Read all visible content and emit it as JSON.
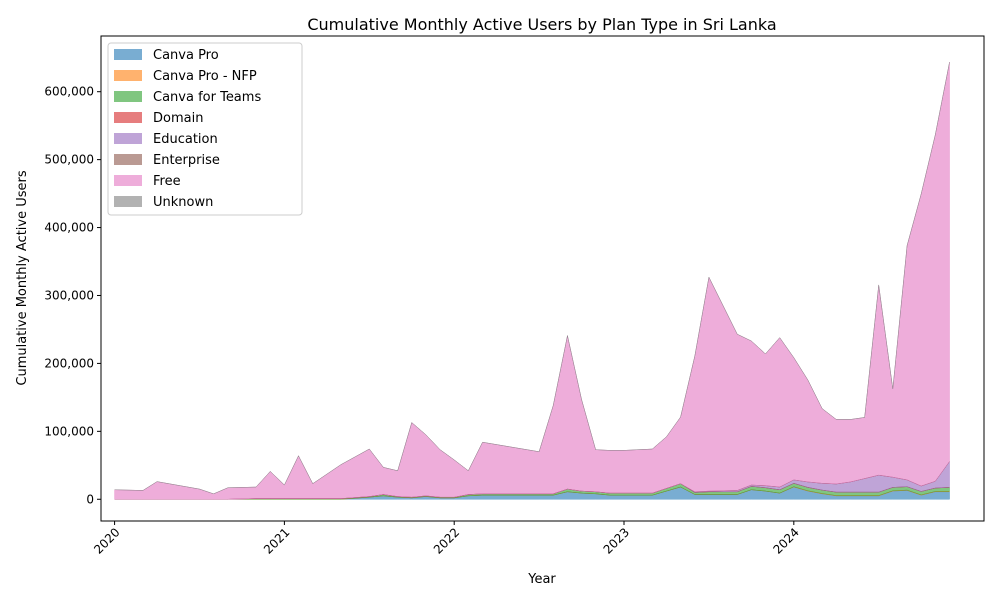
{
  "chart_data": {
    "type": "area",
    "stacked": true,
    "title": "Cumulative Monthly Active Users by Plan Type in Sri Lanka",
    "xlabel": "Year",
    "ylabel": "Cumulative Monthly Active Users",
    "xlim": [
      2019.92,
      2025.12
    ],
    "ylim": [
      -32000,
      682000
    ],
    "x_ticks": [
      2020,
      2021,
      2022,
      2023,
      2024
    ],
    "x_tick_labels": [
      "2020",
      "2021",
      "2022",
      "2023",
      "2024"
    ],
    "y_ticks": [
      0,
      100000,
      200000,
      300000,
      400000,
      500000,
      600000
    ],
    "y_tick_labels": [
      "0",
      "100,000",
      "200,000",
      "300,000",
      "400,000",
      "500,000",
      "600,000"
    ],
    "grid": false,
    "legend_position": "upper-left",
    "x": [
      2020.0,
      2020.167,
      2020.25,
      2020.5,
      2020.583,
      2020.667,
      2020.833,
      2020.917,
      2021.0,
      2021.083,
      2021.167,
      2021.333,
      2021.5,
      2021.583,
      2021.667,
      2021.75,
      2021.833,
      2021.917,
      2022.0,
      2022.083,
      2022.167,
      2022.5,
      2022.583,
      2022.667,
      2022.75,
      2022.833,
      2022.917,
      2023.0,
      2023.167,
      2023.25,
      2023.333,
      2023.417,
      2023.5,
      2023.667,
      2023.75,
      2023.833,
      2023.917,
      2024.0,
      2024.083,
      2024.167,
      2024.25,
      2024.333,
      2024.417,
      2024.5,
      2024.583,
      2024.667,
      2024.75,
      2024.833,
      2024.917
    ],
    "series": [
      {
        "name": "Canva Pro",
        "color": "#1f77b4",
        "values": [
          0,
          0,
          0,
          0,
          0,
          0,
          0,
          0,
          0,
          0,
          0,
          0,
          3000,
          5000,
          3000,
          2000,
          4000,
          2000,
          2000,
          5000,
          6000,
          6000,
          6000,
          11000,
          9000,
          8000,
          6000,
          6000,
          6000,
          12000,
          18000,
          7000,
          7000,
          7000,
          14000,
          12000,
          9000,
          18000,
          12000,
          8000,
          5000,
          5000,
          5000,
          5000,
          12000,
          13000,
          6000,
          11000,
          11000
        ]
      },
      {
        "name": "Canva Pro - NFP",
        "color": "#ff7f0e",
        "values": [
          0,
          0,
          0,
          0,
          0,
          0,
          0,
          0,
          0,
          0,
          0,
          0,
          0,
          0,
          0,
          0,
          0,
          0,
          0,
          0,
          0,
          0,
          0,
          0,
          0,
          0,
          0,
          0,
          0,
          0,
          0,
          0,
          0,
          0,
          0,
          0,
          0,
          500,
          500,
          500,
          500,
          500,
          500,
          500,
          500,
          500,
          500,
          500,
          500
        ]
      },
      {
        "name": "Canva for Teams",
        "color": "#2ca02c",
        "values": [
          0,
          0,
          0,
          0,
          0,
          0,
          1000,
          1000,
          1000,
          1000,
          1000,
          1000,
          1000,
          2000,
          1000,
          1000,
          1000,
          1000,
          1000,
          2000,
          2000,
          2000,
          2000,
          4000,
          3000,
          3000,
          3000,
          3000,
          3000,
          4000,
          5000,
          3000,
          4000,
          4000,
          5000,
          5000,
          5000,
          5000,
          5000,
          5000,
          5000,
          5000,
          5000,
          5000,
          5000,
          5000,
          5000,
          5000,
          6000
        ]
      },
      {
        "name": "Domain",
        "color": "#d62728",
        "values": [
          0,
          0,
          0,
          0,
          0,
          0,
          0,
          0,
          0,
          0,
          0,
          0,
          0,
          0,
          0,
          0,
          0,
          0,
          0,
          0,
          0,
          0,
          0,
          0,
          0,
          0,
          0,
          0,
          0,
          0,
          0,
          0,
          0,
          0,
          0,
          0,
          0,
          0,
          0,
          0,
          0,
          0,
          0,
          0,
          0,
          0,
          0,
          0,
          0
        ]
      },
      {
        "name": "Education",
        "color": "#9467bd",
        "values": [
          0,
          0,
          0,
          0,
          0,
          0,
          0,
          0,
          0,
          0,
          0,
          0,
          0,
          0,
          0,
          0,
          0,
          0,
          0,
          0,
          0,
          0,
          0,
          0,
          0,
          0,
          0,
          0,
          0,
          0,
          0,
          1000,
          1000,
          2000,
          2000,
          3000,
          4000,
          5000,
          8000,
          10000,
          12000,
          15000,
          20000,
          25000,
          15000,
          10000,
          8000,
          10000,
          38000
        ]
      },
      {
        "name": "Enterprise",
        "color": "#8c564b",
        "values": [
          0,
          0,
          0,
          0,
          0,
          0,
          0,
          0,
          0,
          0,
          0,
          0,
          0,
          0,
          0,
          0,
          0,
          0,
          0,
          0,
          0,
          0,
          0,
          0,
          0,
          0,
          0,
          0,
          0,
          0,
          0,
          0,
          0,
          0,
          0,
          0,
          0,
          0,
          0,
          0,
          0,
          0,
          0,
          0,
          0,
          0,
          0,
          0,
          0
        ]
      },
      {
        "name": "Free",
        "color": "#e377c2",
        "values": [
          14000,
          13000,
          26000,
          15000,
          8000,
          17000,
          17000,
          40000,
          20000,
          63000,
          22000,
          50000,
          70000,
          40000,
          38000,
          110000,
          90000,
          70000,
          55000,
          35000,
          76000,
          62000,
          130000,
          226000,
          135000,
          62000,
          63000,
          63000,
          65000,
          76000,
          98000,
          200000,
          315000,
          230000,
          212000,
          194000,
          220000,
          180000,
          150000,
          110000,
          95000,
          92000,
          90000,
          280000,
          130000,
          345000,
          430000,
          510000,
          588000
        ]
      },
      {
        "name": "Unknown",
        "color": "#7f7f7f",
        "values": [
          0,
          0,
          0,
          0,
          0,
          0,
          0,
          0,
          0,
          0,
          0,
          0,
          0,
          0,
          0,
          0,
          0,
          0,
          0,
          0,
          0,
          0,
          0,
          0,
          0,
          0,
          0,
          0,
          0,
          0,
          0,
          0,
          0,
          0,
          0,
          0,
          0,
          0,
          0,
          0,
          0,
          0,
          0,
          0,
          0,
          0,
          0,
          0,
          0
        ]
      }
    ]
  }
}
